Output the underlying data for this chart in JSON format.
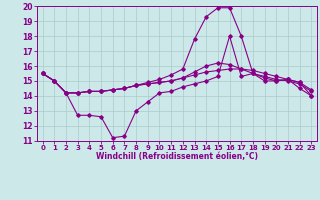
{
  "xlabel": "Windchill (Refroidissement éolien,°C)",
  "xlim": [
    -0.5,
    23.5
  ],
  "ylim": [
    11,
    20
  ],
  "xticks": [
    0,
    1,
    2,
    3,
    4,
    5,
    6,
    7,
    8,
    9,
    10,
    11,
    12,
    13,
    14,
    15,
    16,
    17,
    18,
    19,
    20,
    21,
    22,
    23
  ],
  "yticks": [
    11,
    12,
    13,
    14,
    15,
    16,
    17,
    18,
    19,
    20
  ],
  "bg_color": "#cce8e8",
  "line_color": "#880088",
  "grid_color": "#aacccc",
  "series": [
    [
      15.5,
      15.0,
      14.2,
      12.7,
      12.7,
      12.6,
      11.2,
      11.3,
      13.0,
      13.6,
      14.2,
      14.3,
      14.6,
      14.8,
      15.0,
      15.3,
      18.0,
      15.3,
      15.5,
      15.0,
      15.0,
      15.1,
      14.5,
      14.0
    ],
    [
      15.5,
      15.0,
      14.2,
      14.2,
      14.3,
      14.3,
      14.4,
      14.5,
      14.7,
      14.8,
      14.9,
      15.0,
      15.2,
      15.4,
      15.6,
      15.7,
      15.8,
      15.8,
      15.7,
      15.5,
      15.3,
      15.1,
      14.9,
      14.4
    ],
    [
      15.5,
      15.0,
      14.2,
      14.2,
      14.3,
      14.3,
      14.4,
      14.5,
      14.7,
      14.8,
      14.9,
      15.0,
      15.2,
      15.6,
      16.0,
      16.2,
      16.1,
      15.8,
      15.5,
      15.3,
      15.1,
      15.0,
      14.8,
      14.3
    ],
    [
      15.5,
      15.0,
      14.2,
      14.2,
      14.3,
      14.3,
      14.4,
      14.5,
      14.7,
      14.9,
      15.1,
      15.4,
      15.8,
      17.8,
      19.3,
      19.9,
      19.9,
      18.0,
      15.5,
      15.2,
      15.0,
      15.1,
      14.9,
      14.0
    ]
  ],
  "marker": "D",
  "markersize": 1.8,
  "linewidth": 0.8,
  "tick_fontsize": 5.0,
  "xlabel_fontsize": 5.5
}
